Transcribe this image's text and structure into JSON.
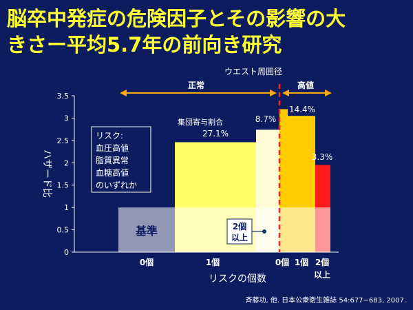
{
  "title": {
    "line1": "脳卒中発症の危険因子とその影響の大",
    "line2": "きさー平均5.7年の前向き研究"
  },
  "citation": "斉藤功, 他. 日本公衆衛生雑誌 54:677−683, 2007.",
  "colors": {
    "background": "#0c1c5e",
    "title": "#ffff33",
    "text": "#ffffff",
    "baseline_band": "#fff2c2",
    "normal_bar": "#ffff66",
    "normal_bar_2": "#fffbd6",
    "high_bar_1": "#ffcc00",
    "high_bar_2": "#ff1a1a",
    "dashed_line": "#ff2020",
    "arrow": "#ffaa00"
  },
  "chart_data": {
    "type": "bar",
    "ylabel": "ハザード比",
    "xlabel": "リスクの個数",
    "ylim": [
      0,
      3.5
    ],
    "yticks": [
      "0",
      "0.5",
      "1",
      "1.5",
      "2",
      "2.5",
      "3",
      "3.5"
    ],
    "categories": [
      "0個",
      "1個",
      "2個以上",
      "0個",
      "1個",
      "2個以上"
    ],
    "values": [
      1.0,
      2.46,
      2.74,
      3.2,
      3.05,
      1.95
    ],
    "group_labels": [
      "正常",
      "高値"
    ],
    "group_title": "ウエスト周囲径",
    "baseline": {
      "label": "基準",
      "value": 1.0
    },
    "annotations": {
      "pct_normal_1": "27.1%",
      "pct_normal_2": "8.7%",
      "pct_high_1": "14.4%",
      "pct_high_2": "3.3%",
      "contribution_label": "集団寄与割合",
      "two_or_more": [
        "2個",
        "以上"
      ]
    },
    "legend_box": [
      "リスク:",
      "血圧高値",
      "脂質異常",
      "血糖高値",
      "のいずれか"
    ],
    "x_axis_labels": {
      "zero": "0個",
      "one": "1個",
      "high_zero": "0個",
      "high_one": "1個",
      "high_two": [
        "2個",
        "以上"
      ]
    }
  }
}
